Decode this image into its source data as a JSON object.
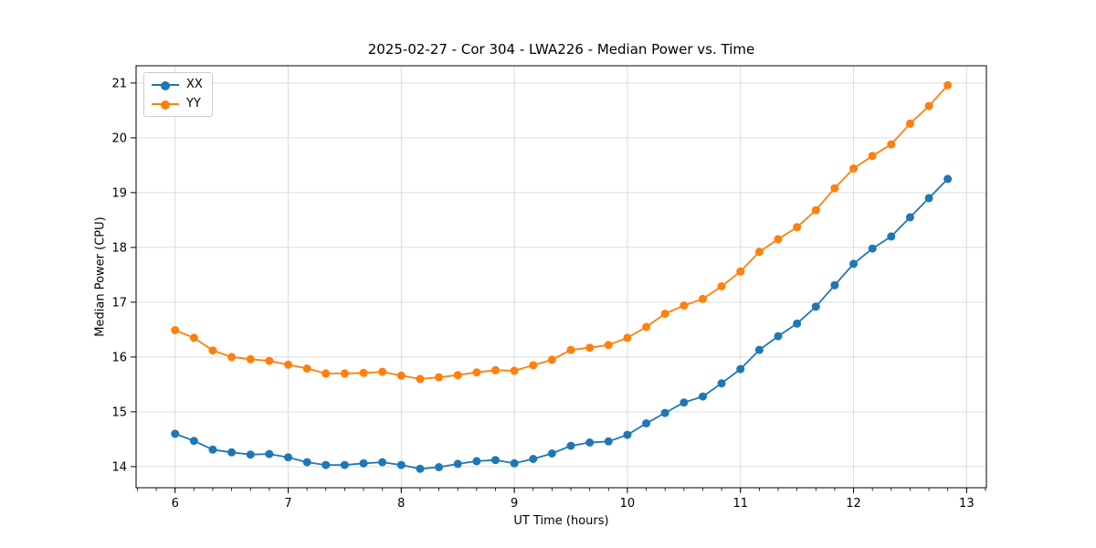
{
  "chart_data": {
    "type": "line",
    "title": "2025-02-27 - Cor 304 - LWA226 - Median Power vs. Time",
    "xlabel": "UT Time (hours)",
    "ylabel": "Median Power (CPU)",
    "xlim": [
      5.655,
      13.175
    ],
    "ylim": [
      13.615,
      21.315
    ],
    "xticks": [
      6,
      7,
      8,
      9,
      10,
      11,
      12,
      13
    ],
    "yticks": [
      14,
      15,
      16,
      17,
      18,
      19,
      20,
      21
    ],
    "x_minor_step": 0.166667,
    "grid": "major",
    "legend_position": "upper-left",
    "x": [
      6.0,
      6.167,
      6.333,
      6.5,
      6.667,
      6.833,
      7.0,
      7.167,
      7.333,
      7.5,
      7.667,
      7.833,
      8.0,
      8.167,
      8.333,
      8.5,
      8.667,
      8.833,
      9.0,
      9.167,
      9.333,
      9.5,
      9.667,
      9.833,
      10.0,
      10.167,
      10.333,
      10.5,
      10.667,
      10.833,
      11.0,
      11.167,
      11.333,
      11.5,
      11.667,
      11.833,
      12.0,
      12.167,
      12.333,
      12.5,
      12.667,
      12.833
    ],
    "series": [
      {
        "name": "XX",
        "color": "#1f77b4",
        "values": [
          14.6,
          14.47,
          14.31,
          14.26,
          14.22,
          14.23,
          14.17,
          14.08,
          14.03,
          14.03,
          14.06,
          14.08,
          14.03,
          13.96,
          13.99,
          14.05,
          14.1,
          14.12,
          14.06,
          14.14,
          14.24,
          14.38,
          14.44,
          14.46,
          14.58,
          14.79,
          14.98,
          15.17,
          15.28,
          15.52,
          15.78,
          16.13,
          16.38,
          16.61,
          16.92,
          17.31,
          17.7,
          17.98,
          18.2,
          18.55,
          18.9,
          19.25
        ]
      },
      {
        "name": "YY",
        "color": "#ff7f0e",
        "values": [
          16.49,
          16.35,
          16.12,
          16.0,
          15.96,
          15.93,
          15.86,
          15.79,
          15.7,
          15.7,
          15.71,
          15.73,
          15.66,
          15.6,
          15.63,
          15.67,
          15.72,
          15.76,
          15.75,
          15.85,
          15.95,
          16.13,
          16.17,
          16.22,
          16.35,
          16.55,
          16.79,
          16.94,
          17.06,
          17.29,
          17.56,
          17.92,
          18.15,
          18.37,
          18.68,
          19.08,
          19.44,
          19.67,
          19.88,
          20.26,
          20.58,
          20.96
        ]
      }
    ],
    "style": {
      "background": "#ffffff",
      "grid_color": "#dcdcdc",
      "spine_color": "#000000",
      "text_color": "#000000"
    }
  }
}
